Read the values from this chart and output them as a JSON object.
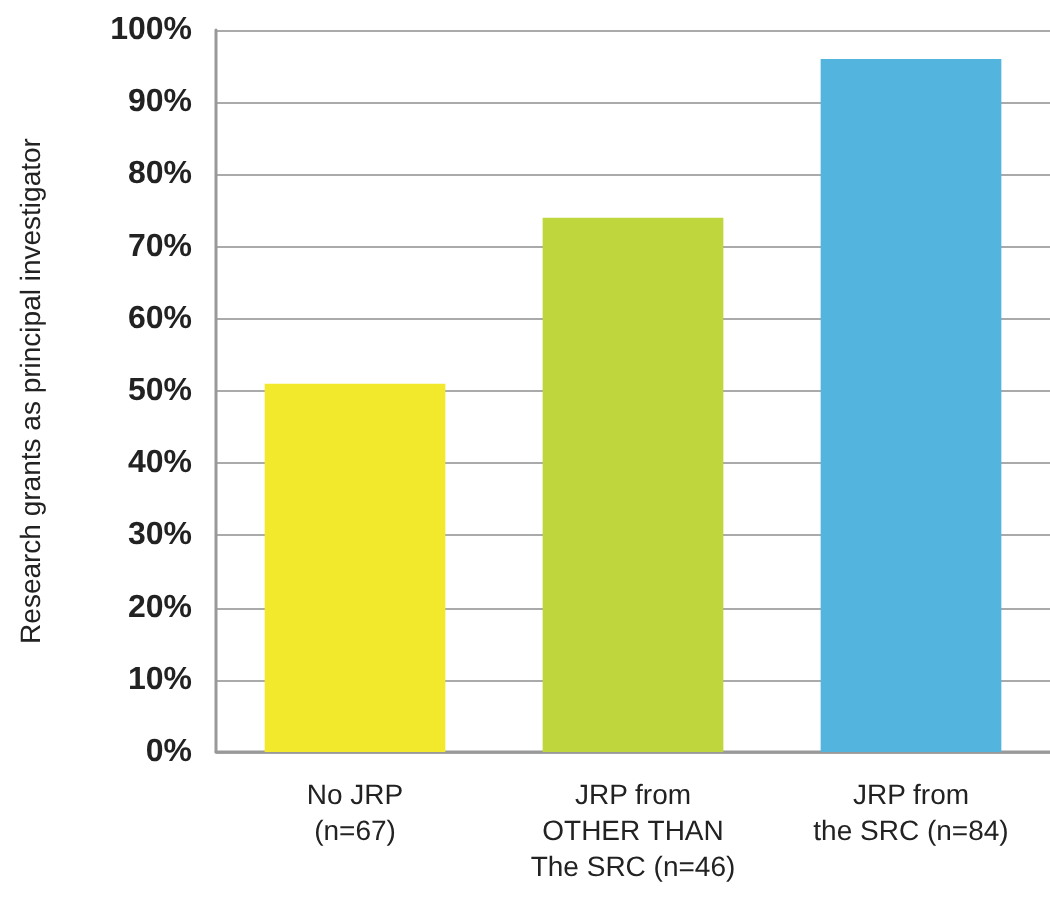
{
  "chart_data": {
    "type": "bar",
    "ylabel": "Research grants as principal investigator",
    "categories": [
      "No JRP\n(n=67)",
      "JRP from\nOTHER THAN\nThe SRC (n=46)",
      "JRP from\nthe SRC (n=84)"
    ],
    "values": [
      51,
      74,
      96
    ],
    "colors": [
      "#f2e92d",
      "#bfd73c",
      "#53b5de"
    ],
    "ylim": [
      0,
      100
    ],
    "yticks": [
      {
        "value": 0,
        "label": "0%"
      },
      {
        "value": 10,
        "label": "10%"
      },
      {
        "value": 20,
        "label": "20%"
      },
      {
        "value": 30,
        "label": "30%"
      },
      {
        "value": 40,
        "label": "40%"
      },
      {
        "value": 50,
        "label": "50%"
      },
      {
        "value": 60,
        "label": "60%"
      },
      {
        "value": 70,
        "label": "70%"
      },
      {
        "value": 80,
        "label": "80%"
      },
      {
        "value": 90,
        "label": "90%"
      },
      {
        "value": 100,
        "label": "100%"
      }
    ],
    "grid": "y"
  }
}
